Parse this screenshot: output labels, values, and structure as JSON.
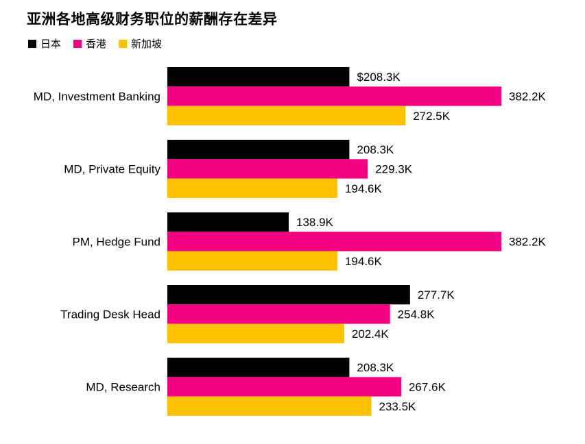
{
  "chart_data": {
    "type": "bar",
    "orientation": "horizontal",
    "title": "亚洲各地高级财务职位的薪酬存在差异",
    "categories": [
      "MD, Investment Banking",
      "MD, Private Equity",
      "PM, Hedge Fund",
      "Trading Desk Head",
      "MD, Research"
    ],
    "series": [
      {
        "name": "日本",
        "color": "#000000",
        "values": [
          208.3,
          208.3,
          138.9,
          277.7,
          208.3
        ],
        "labels": [
          "$208.3K",
          "208.3K",
          "138.9K",
          "277.7K",
          "208.3K"
        ]
      },
      {
        "name": "香港",
        "color": "#f2007f",
        "values": [
          382.2,
          229.3,
          382.2,
          254.8,
          267.6
        ],
        "labels": [
          "382.2K",
          "229.3K",
          "382.2K",
          "254.8K",
          "267.6K"
        ]
      },
      {
        "name": "新加坡",
        "color": "#ffc200",
        "values": [
          272.5,
          194.6,
          194.6,
          202.4,
          233.5
        ],
        "labels": [
          "272.5K",
          "194.6K",
          "194.6K",
          "202.4K",
          "233.5K"
        ]
      }
    ],
    "legend_position": "top-left",
    "grid": false
  }
}
